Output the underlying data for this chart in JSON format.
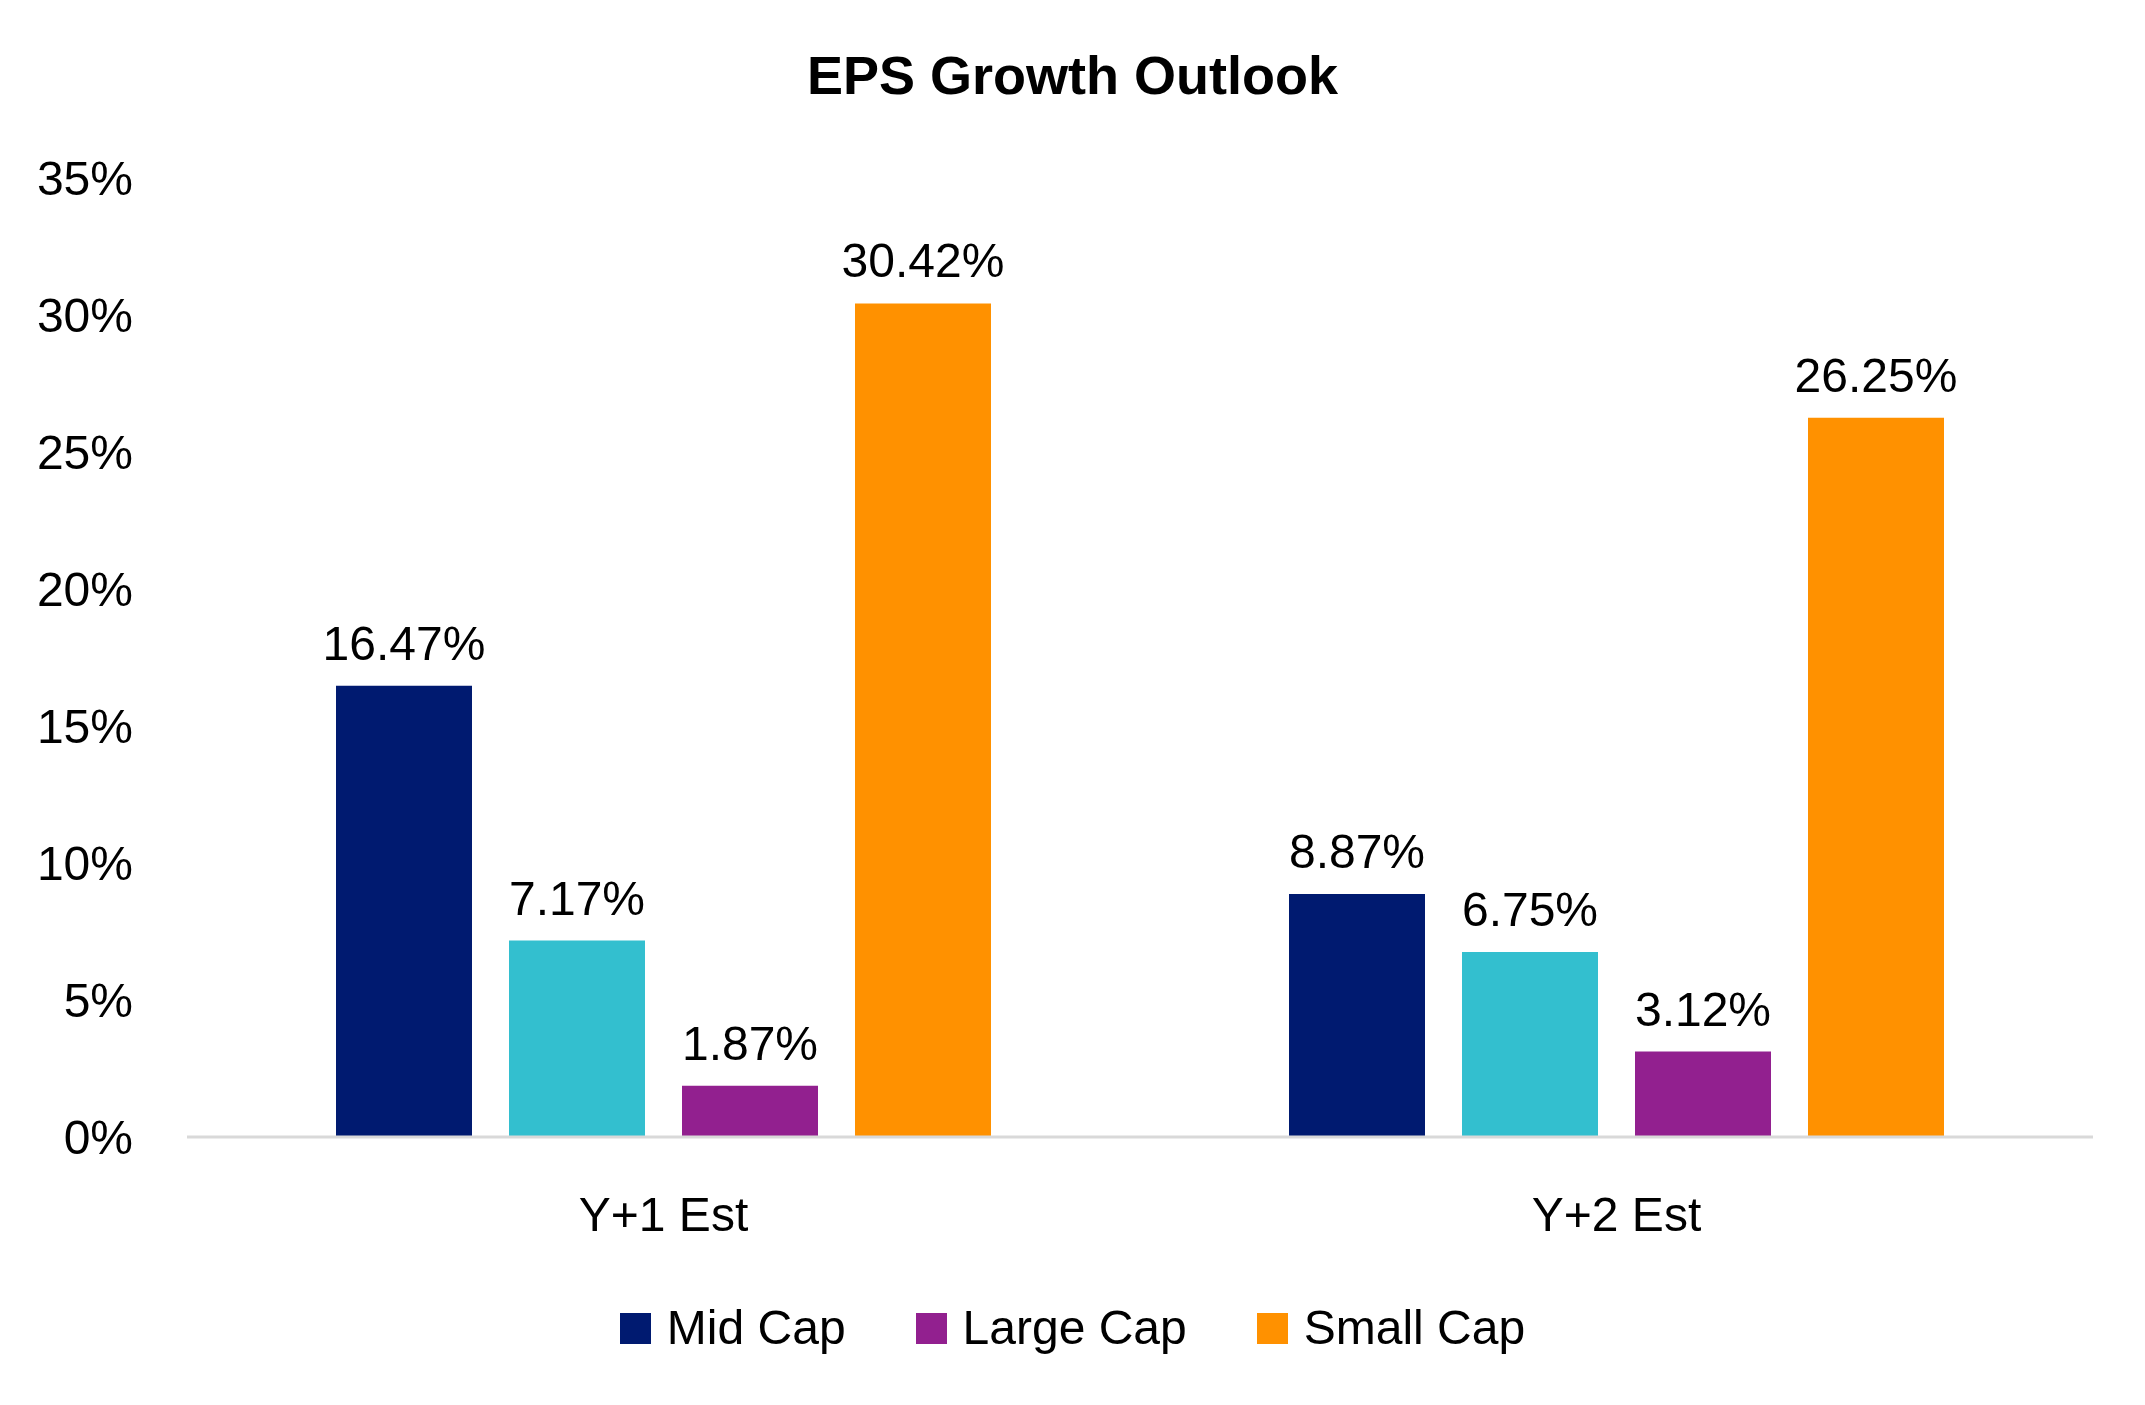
{
  "chart_data": {
    "type": "bar",
    "title": "EPS Growth Outlook",
    "categories": [
      "Y+1 Est",
      "Y+2 Est"
    ],
    "series": [
      {
        "name": "Mid Cap",
        "color": "#001a70",
        "values": [
          16.47,
          8.87
        ],
        "value_labels": [
          "16.47%",
          "8.87%"
        ]
      },
      {
        "color": "#33bfcf",
        "values": [
          7.17,
          6.75
        ],
        "value_labels": [
          "7.17%",
          "6.75%"
        ]
      },
      {
        "name": "Large Cap",
        "color": "#92208f",
        "values": [
          1.87,
          3.12
        ],
        "value_labels": [
          "1.87%",
          "3.12%"
        ]
      },
      {
        "name": "Small Cap",
        "color": "#ff9100",
        "values": [
          30.42,
          26.25
        ],
        "value_labels": [
          "30.42%",
          "26.25%"
        ]
      }
    ],
    "ylim": [
      0,
      35
    ],
    "yticks": [
      {
        "value": 0,
        "label": "0%"
      },
      {
        "value": 5,
        "label": "5%"
      },
      {
        "value": 10,
        "label": "10%"
      },
      {
        "value": 15,
        "label": "15%"
      },
      {
        "value": 20,
        "label": "20%"
      },
      {
        "value": 25,
        "label": "25%"
      },
      {
        "value": 30,
        "label": "30%"
      },
      {
        "value": 35,
        "label": "35%"
      }
    ],
    "legend": "bottom"
  }
}
